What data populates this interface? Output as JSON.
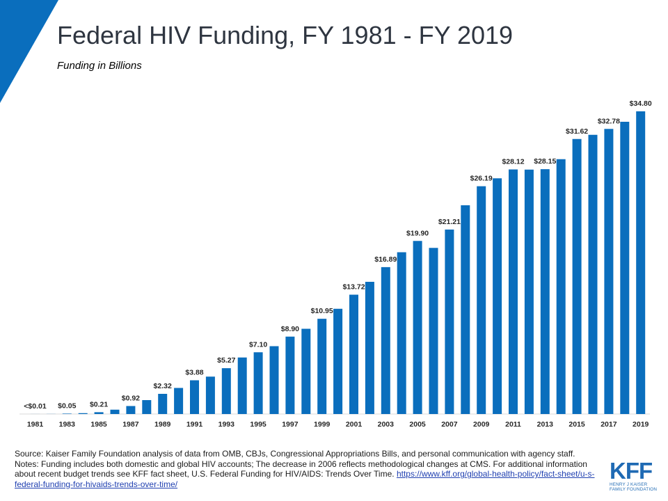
{
  "header": {
    "title": "Federal HIV Funding, FY 1981 - FY 2019",
    "subtitle": "Funding in Billions"
  },
  "colors": {
    "bar": "#0a6ebd",
    "corner": "#0a6ebd",
    "logo": "#1f6ab4"
  },
  "chart_data": {
    "type": "bar",
    "title": "Federal HIV Funding, FY 1981 - FY 2019",
    "subtitle": "Funding in Billions",
    "xlabel": "",
    "ylabel": "",
    "categories": [
      "1981",
      "1982",
      "1983",
      "1984",
      "1985",
      "1986",
      "1987",
      "1988",
      "1989",
      "1990",
      "1991",
      "1992",
      "1993",
      "1994",
      "1995",
      "1996",
      "1997",
      "1998",
      "1999",
      "2000",
      "2001",
      "2002",
      "2003",
      "2004",
      "2005",
      "2006",
      "2007",
      "2008",
      "2009",
      "2010",
      "2011",
      "2012",
      "2013",
      "2014",
      "2015",
      "2016",
      "2017",
      "2018",
      "2019"
    ],
    "values": [
      0.005,
      0.01,
      0.05,
      0.1,
      0.21,
      0.5,
      0.92,
      1.6,
      2.32,
      3.0,
      3.88,
      4.3,
      5.27,
      6.5,
      7.1,
      7.8,
      8.9,
      9.8,
      10.95,
      12.1,
      13.72,
      15.2,
      16.89,
      18.6,
      19.9,
      19.1,
      21.21,
      24.0,
      26.19,
      27.1,
      28.12,
      28.1,
      28.15,
      29.3,
      31.62,
      32.1,
      32.78,
      33.6,
      34.8
    ],
    "data_labels": [
      {
        "category": "1981",
        "text": "<$0.01"
      },
      {
        "category": "1983",
        "text": "$0.05"
      },
      {
        "category": "1985",
        "text": "$0.21"
      },
      {
        "category": "1987",
        "text": "$0.92"
      },
      {
        "category": "1989",
        "text": "$2.32"
      },
      {
        "category": "1991",
        "text": "$3.88"
      },
      {
        "category": "1993",
        "text": "$5.27"
      },
      {
        "category": "1995",
        "text": "$7.10"
      },
      {
        "category": "1997",
        "text": "$8.90"
      },
      {
        "category": "1999",
        "text": "$10.95"
      },
      {
        "category": "2001",
        "text": "$13.72"
      },
      {
        "category": "2003",
        "text": "$16.89"
      },
      {
        "category": "2005",
        "text": "$19.90"
      },
      {
        "category": "2007",
        "text": "$21.21"
      },
      {
        "category": "2009",
        "text": "$26.19"
      },
      {
        "category": "2011",
        "text": "$28.12"
      },
      {
        "category": "2013",
        "text": "$28.15"
      },
      {
        "category": "2015",
        "text": "$31.62"
      },
      {
        "category": "2017",
        "text": "$32.78"
      },
      {
        "category": "2019",
        "text": "$34.80"
      }
    ],
    "x_tick_labels": [
      "1981",
      "1983",
      "1985",
      "1987",
      "1989",
      "1991",
      "1993",
      "1995",
      "1997",
      "1999",
      "2001",
      "2003",
      "2005",
      "2007",
      "2009",
      "2011",
      "2013",
      "2015",
      "2017",
      "2019"
    ],
    "ylim": [
      0,
      35
    ],
    "grid": false,
    "legend": "none"
  },
  "footer": {
    "source": "Source: Kaiser Family Foundation analysis of data from OMB, CBJs, Congressional Appropriations Bills, and personal communication with agency staff.",
    "notes": "Notes: Funding includes both domestic and global HIV accounts; The decrease in 2006 reflects methodological changes at CMS. For additional information about recent budget trends see KFF fact sheet, U.S. Federal Funding for HIV/AIDS: Trends Over Time.",
    "link": "https://www.kff.org/global-health-policy/fact-sheet/u-s-federal-funding-for-hivaids-trends-over-time/"
  },
  "logo": {
    "mark": "KFF",
    "line1": "HENRY J KAISER",
    "line2": "FAMILY FOUNDATION"
  }
}
